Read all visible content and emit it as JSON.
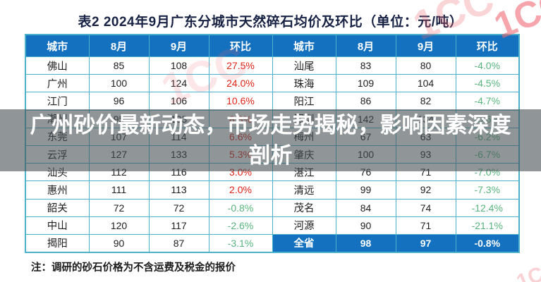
{
  "title": "表2 2024年9月广东分城市天然碎石均价及环比（单位：元/吨）",
  "headline": {
    "line1": "广州砂价最新动态，市场走势揭秘，影响因素深度",
    "line2": "剖析"
  },
  "note": "注：调研的砂石价格为不含运费及税金的报价",
  "watermark": {
    "text": "1CC"
  },
  "table": {
    "headers": [
      "城市",
      "8月",
      "9月",
      "环比"
    ],
    "rows": [
      {
        "l": [
          "佛山",
          "85",
          "108",
          "27.5%"
        ],
        "r": [
          "汕尾",
          "83",
          "80",
          "-4.0%"
        ]
      },
      {
        "l": [
          "广州",
          "100",
          "124",
          "24.0%"
        ],
        "r": [
          "珠海",
          "109",
          "104",
          "-4.5%"
        ]
      },
      {
        "l": [
          "江门",
          "96",
          "106",
          "10.6%"
        ],
        "r": [
          "阳江",
          "86",
          "82",
          "-4.7%"
        ]
      },
      {
        "l": [
          "潮州",
          "95",
          "103",
          "8.8%"
        ],
        "r": [
          "深圳",
          "142",
          "134",
          "-5.6%"
        ]
      },
      {
        "l": [
          "东莞",
          "107",
          "114",
          "6.6%"
        ],
        "r": [
          "梅州",
          "67",
          "63",
          "-6.2%"
        ]
      },
      {
        "l": [
          "云浮",
          "127",
          "133",
          "5.3%"
        ],
        "r": [
          "肇庆",
          "100",
          "93",
          "-6.7%"
        ]
      },
      {
        "l": [
          "汕头",
          "112",
          "116",
          "3.0%"
        ],
        "r": [
          "湛江",
          "76",
          "71",
          "-7.0%"
        ]
      },
      {
        "l": [
          "惠州",
          "111",
          "113",
          "2.0%"
        ],
        "r": [
          "清远",
          "99",
          "92",
          "-7.3%"
        ]
      },
      {
        "l": [
          "韶关",
          "72",
          "72",
          "-0.8%"
        ],
        "r": [
          "茂名",
          "84",
          "74",
          "-12.4%"
        ]
      },
      {
        "l": [
          "中山",
          "120",
          "117",
          "-2.6%"
        ],
        "r": [
          "河源",
          "90",
          "71",
          "-21.1%"
        ]
      },
      {
        "l": [
          "揭阳",
          "90",
          "87",
          "-3.1%"
        ],
        "r": [
          "全省",
          "98",
          "97",
          "-0.8%"
        ],
        "r_highlight": true
      }
    ]
  },
  "chart_data": {
    "type": "table",
    "title": "表2 2024年9月广东分城市天然碎石均价及环比（单位：元/吨）",
    "columns": [
      "城市",
      "8月",
      "9月",
      "环比"
    ],
    "records": [
      [
        "佛山",
        85,
        108,
        "27.5%"
      ],
      [
        "广州",
        100,
        124,
        "24.0%"
      ],
      [
        "江门",
        96,
        106,
        "10.6%"
      ],
      [
        "潮州",
        95,
        103,
        "8.8%"
      ],
      [
        "东莞",
        107,
        114,
        "6.6%"
      ],
      [
        "云浮",
        127,
        133,
        "5.3%"
      ],
      [
        "汕头",
        112,
        116,
        "3.0%"
      ],
      [
        "惠州",
        111,
        113,
        "2.0%"
      ],
      [
        "韶关",
        72,
        72,
        "-0.8%"
      ],
      [
        "中山",
        120,
        117,
        "-2.6%"
      ],
      [
        "揭阳",
        90,
        87,
        "-3.1%"
      ],
      [
        "汕尾",
        83,
        80,
        "-4.0%"
      ],
      [
        "珠海",
        109,
        104,
        "-4.5%"
      ],
      [
        "阳江",
        86,
        82,
        "-4.7%"
      ],
      [
        "深圳",
        142,
        134,
        "-5.6%"
      ],
      [
        "梅州",
        67,
        63,
        "-6.2%"
      ],
      [
        "肇庆",
        100,
        93,
        "-6.7%"
      ],
      [
        "湛江",
        76,
        71,
        "-7.0%"
      ],
      [
        "清远",
        99,
        92,
        "-7.3%"
      ],
      [
        "茂名",
        84,
        74,
        "-12.4%"
      ],
      [
        "河源",
        90,
        71,
        "-21.1%"
      ],
      [
        "全省",
        98,
        97,
        "-0.8%"
      ]
    ]
  },
  "colors": {
    "header_bg": "#1371bf",
    "highlight_bg": "#1371bf",
    "border": "#4ab2cb",
    "positive": "#e02317",
    "negative": "#58b47e",
    "overlay_bg": "rgba(70,80,83,0.6)",
    "watermark_color": "#ef6a74"
  }
}
